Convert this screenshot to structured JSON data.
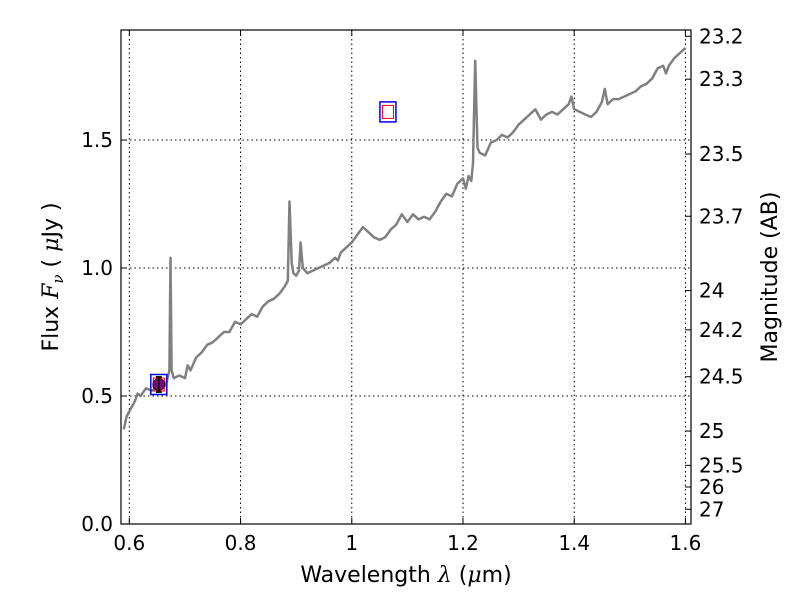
{
  "chart_data": {
    "type": "line",
    "xlabel": "Wavelength  λ (μm)",
    "ylabel": "Flux  F_ν  ( μJy )",
    "y2label": "Magnitude (AB)",
    "xlim": [
      0.585,
      1.61
    ],
    "ylim": [
      0.0,
      1.93
    ],
    "grid": true,
    "x_ticks": [
      0.6,
      0.8,
      1.0,
      1.2,
      1.4,
      1.6
    ],
    "x_tick_labels": [
      "0.6",
      "0.8",
      "1",
      "1.2",
      "1.4",
      "1.6"
    ],
    "y_ticks": [
      0.0,
      0.5,
      1.0,
      1.5
    ],
    "y_tick_labels": [
      "0.0",
      "0.5",
      "1.0",
      "1.5"
    ],
    "y2_ticks": [
      {
        "label": "23.2",
        "mag": 23.2
      },
      {
        "label": "23.3",
        "mag": 23.3
      },
      {
        "label": "23.5",
        "mag": 23.5
      },
      {
        "label": "23.7",
        "mag": 23.7
      },
      {
        "label": "24",
        "mag": 24.0
      },
      {
        "label": "24.2",
        "mag": 24.2
      },
      {
        "label": "24.5",
        "mag": 24.5
      },
      {
        "label": "25",
        "mag": 25.0
      },
      {
        "label": "25.5",
        "mag": 25.5
      },
      {
        "label": "26",
        "mag": 26.0
      },
      {
        "label": "27",
        "mag": 27.0
      }
    ],
    "series": [
      {
        "type": "line",
        "color": "#808080",
        "points": [
          [
            0.59,
            0.37
          ],
          [
            0.595,
            0.42
          ],
          [
            0.6,
            0.44
          ],
          [
            0.61,
            0.48
          ],
          [
            0.615,
            0.51
          ],
          [
            0.62,
            0.5
          ],
          [
            0.63,
            0.53
          ],
          [
            0.64,
            0.52
          ],
          [
            0.65,
            0.53
          ],
          [
            0.66,
            0.55
          ],
          [
            0.665,
            0.54
          ],
          [
            0.67,
            0.58
          ],
          [
            0.672,
            0.6
          ],
          [
            0.674,
            1.04
          ],
          [
            0.676,
            0.6
          ],
          [
            0.68,
            0.57
          ],
          [
            0.69,
            0.58
          ],
          [
            0.7,
            0.57
          ],
          [
            0.705,
            0.62
          ],
          [
            0.71,
            0.6
          ],
          [
            0.72,
            0.65
          ],
          [
            0.73,
            0.67
          ],
          [
            0.74,
            0.7
          ],
          [
            0.75,
            0.71
          ],
          [
            0.76,
            0.73
          ],
          [
            0.77,
            0.75
          ],
          [
            0.78,
            0.75
          ],
          [
            0.79,
            0.79
          ],
          [
            0.8,
            0.78
          ],
          [
            0.81,
            0.8
          ],
          [
            0.82,
            0.82
          ],
          [
            0.83,
            0.81
          ],
          [
            0.84,
            0.85
          ],
          [
            0.85,
            0.87
          ],
          [
            0.86,
            0.88
          ],
          [
            0.87,
            0.9
          ],
          [
            0.88,
            0.93
          ],
          [
            0.885,
            0.95
          ],
          [
            0.888,
            1.26
          ],
          [
            0.892,
            1.02
          ],
          [
            0.895,
            0.98
          ],
          [
            0.9,
            0.97
          ],
          [
            0.905,
            0.99
          ],
          [
            0.908,
            1.1
          ],
          [
            0.912,
            1.0
          ],
          [
            0.92,
            0.98
          ],
          [
            0.93,
            0.99
          ],
          [
            0.94,
            1.0
          ],
          [
            0.95,
            1.01
          ],
          [
            0.96,
            1.02
          ],
          [
            0.97,
            1.04
          ],
          [
            0.975,
            1.03
          ],
          [
            0.98,
            1.06
          ],
          [
            0.99,
            1.08
          ],
          [
            1.0,
            1.1
          ],
          [
            1.01,
            1.13
          ],
          [
            1.02,
            1.16
          ],
          [
            1.03,
            1.14
          ],
          [
            1.04,
            1.12
          ],
          [
            1.05,
            1.11
          ],
          [
            1.06,
            1.12
          ],
          [
            1.07,
            1.15
          ],
          [
            1.08,
            1.17
          ],
          [
            1.09,
            1.21
          ],
          [
            1.1,
            1.18
          ],
          [
            1.11,
            1.21
          ],
          [
            1.12,
            1.19
          ],
          [
            1.13,
            1.2
          ],
          [
            1.14,
            1.19
          ],
          [
            1.15,
            1.22
          ],
          [
            1.16,
            1.26
          ],
          [
            1.17,
            1.29
          ],
          [
            1.18,
            1.28
          ],
          [
            1.19,
            1.33
          ],
          [
            1.2,
            1.35
          ],
          [
            1.205,
            1.31
          ],
          [
            1.21,
            1.36
          ],
          [
            1.215,
            1.34
          ],
          [
            1.218,
            1.41
          ],
          [
            1.222,
            1.81
          ],
          [
            1.226,
            1.47
          ],
          [
            1.23,
            1.45
          ],
          [
            1.24,
            1.44
          ],
          [
            1.25,
            1.49
          ],
          [
            1.26,
            1.5
          ],
          [
            1.27,
            1.52
          ],
          [
            1.28,
            1.51
          ],
          [
            1.29,
            1.53
          ],
          [
            1.3,
            1.56
          ],
          [
            1.31,
            1.58
          ],
          [
            1.32,
            1.6
          ],
          [
            1.33,
            1.62
          ],
          [
            1.34,
            1.58
          ],
          [
            1.35,
            1.6
          ],
          [
            1.36,
            1.61
          ],
          [
            1.37,
            1.6
          ],
          [
            1.38,
            1.62
          ],
          [
            1.39,
            1.64
          ],
          [
            1.395,
            1.67
          ],
          [
            1.4,
            1.62
          ],
          [
            1.41,
            1.61
          ],
          [
            1.42,
            1.6
          ],
          [
            1.43,
            1.59
          ],
          [
            1.44,
            1.61
          ],
          [
            1.45,
            1.65
          ],
          [
            1.455,
            1.7
          ],
          [
            1.46,
            1.64
          ],
          [
            1.47,
            1.66
          ],
          [
            1.48,
            1.66
          ],
          [
            1.49,
            1.67
          ],
          [
            1.5,
            1.68
          ],
          [
            1.51,
            1.69
          ],
          [
            1.52,
            1.71
          ],
          [
            1.53,
            1.72
          ],
          [
            1.54,
            1.74
          ],
          [
            1.55,
            1.78
          ],
          [
            1.56,
            1.79
          ],
          [
            1.565,
            1.76
          ],
          [
            1.57,
            1.79
          ],
          [
            1.58,
            1.82
          ],
          [
            1.59,
            1.84
          ],
          [
            1.6,
            1.86
          ]
        ]
      }
    ],
    "photometry": [
      {
        "x": 0.653,
        "y": 0.545,
        "yerr": 0.03,
        "color": "#800080"
      }
    ],
    "model_points": [
      {
        "x": 0.653,
        "y": 0.545,
        "outer_color": "#0000ff",
        "inner_color": "#ff0000"
      },
      {
        "x": 1.065,
        "y": 1.61,
        "outer_color": "#0000ff",
        "inner_color": "#ff0000"
      }
    ]
  }
}
